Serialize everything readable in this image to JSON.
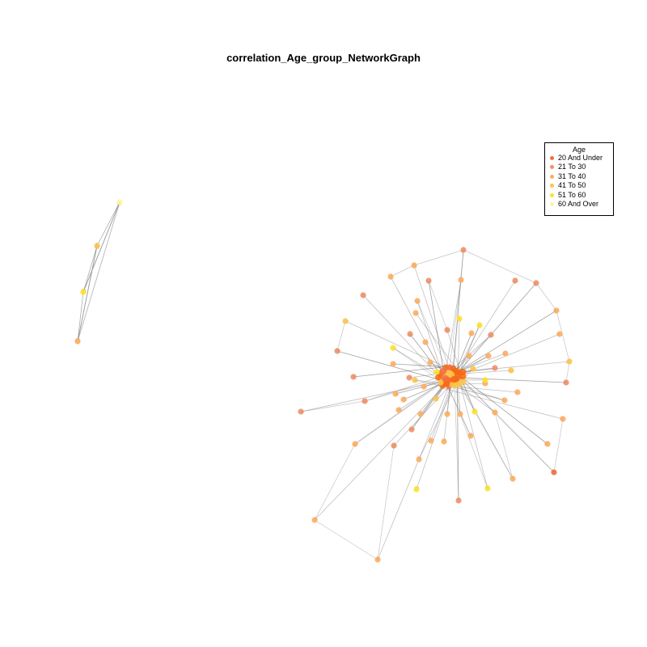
{
  "title": "correlation_Age_group_NetworkGraph",
  "legend": {
    "title": "Age",
    "items": [
      {
        "label": "20 And Under",
        "color": "#F46D43"
      },
      {
        "label": "21 To 30",
        "color": "#F0906C"
      },
      {
        "label": "31 To 40",
        "color": "#FDAE61"
      },
      {
        "label": "41 To 50",
        "color": "#FDC44E"
      },
      {
        "label": "51 To 60",
        "color": "#FEE12E"
      },
      {
        "label": "60 And Over",
        "color": "#FFF59A"
      }
    ]
  },
  "colors": {
    "edge": "#8C8C8C",
    "edge_dark": "#555555",
    "hub": "#F86A10"
  }
}
